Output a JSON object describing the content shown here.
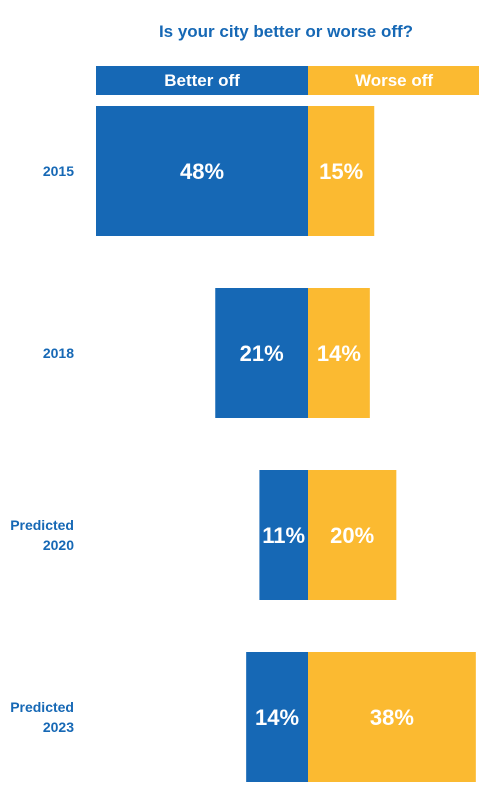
{
  "chart_data": {
    "type": "bar",
    "title": "Is your city better or worse off?",
    "categories": [
      [
        "2015"
      ],
      [
        "2018"
      ],
      [
        "Predicted",
        "2020"
      ],
      [
        "Predicted",
        "2023"
      ]
    ],
    "series": [
      {
        "name": "Better off",
        "values": [
          48,
          21,
          11,
          14
        ],
        "labels": [
          "48%",
          "21%",
          "11%",
          "14%"
        ],
        "color": "#1668b5"
      },
      {
        "name": "Worse off",
        "values": [
          15,
          14,
          20,
          38
        ],
        "labels": [
          "15%",
          "14%",
          "20%",
          "38%"
        ],
        "color": "#fbba31"
      }
    ],
    "legend": "top",
    "grid": false
  }
}
